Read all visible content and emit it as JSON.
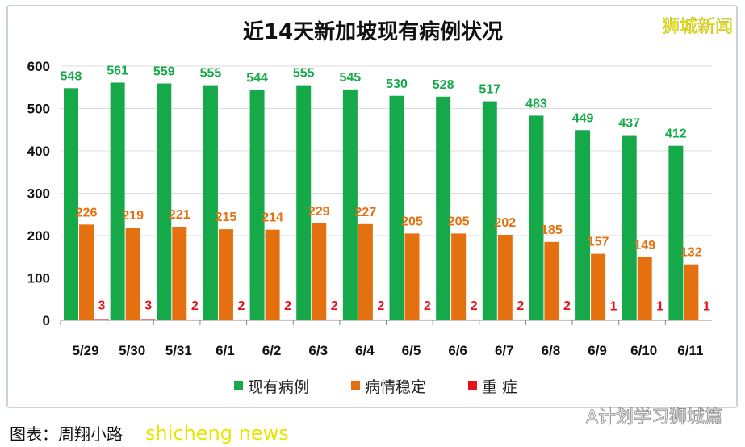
{
  "chart_data": {
    "type": "bar",
    "title": "近14天新加坡现有病例状况",
    "categories": [
      "5/29",
      "5/30",
      "5/31",
      "6/1",
      "6/2",
      "6/3",
      "6/4",
      "6/5",
      "6/6",
      "6/7",
      "6/8",
      "6/9",
      "6/10",
      "6/11"
    ],
    "series": [
      {
        "name": "现有病例",
        "color": "#16a94a",
        "values": [
          548,
          561,
          559,
          555,
          544,
          555,
          545,
          530,
          528,
          517,
          483,
          449,
          437,
          412
        ]
      },
      {
        "name": "病情稳定",
        "color": "#e5700f",
        "values": [
          226,
          219,
          221,
          215,
          214,
          229,
          227,
          205,
          205,
          202,
          185,
          157,
          149,
          132
        ]
      },
      {
        "name": "重 症",
        "color": "#e8101a",
        "values": [
          3,
          3,
          2,
          2,
          2,
          2,
          2,
          2,
          2,
          2,
          2,
          1,
          1,
          1
        ]
      }
    ],
    "ylim": [
      0,
      600
    ],
    "yticks": [
      0,
      100,
      200,
      300,
      400,
      500,
      600
    ],
    "grid": true,
    "legend": "bottom",
    "data_labels": true
  },
  "watermark_top": "狮城新闻",
  "watermark_bottom": "shicheng news",
  "source_text": "图表：周翔小路",
  "wechat_text": "A计划学习狮城篇"
}
